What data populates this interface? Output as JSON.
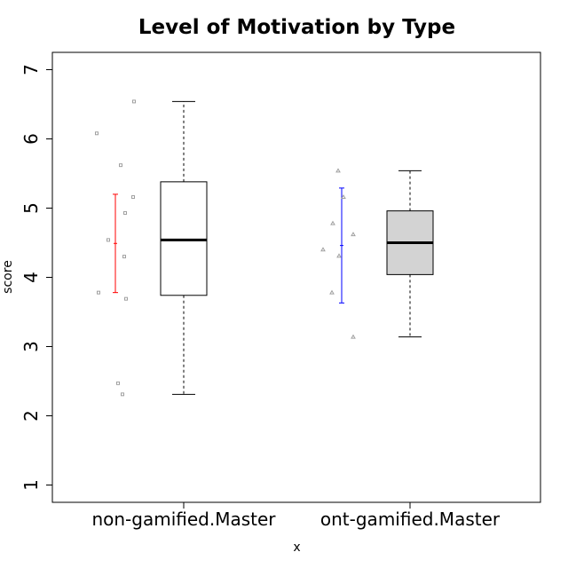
{
  "chart_data": {
    "type": "box",
    "title": "Level of Motivation by Type",
    "xlabel": "x",
    "ylabel": "score",
    "ylim": [
      0.75,
      7.25
    ],
    "yticks": [
      1,
      2,
      3,
      4,
      5,
      6,
      7
    ],
    "categories": [
      "non-gamified.Master",
      "ont-gamified.Master"
    ],
    "boxes": [
      {
        "category": "non-gamified.Master",
        "fill": "#ffffff",
        "min": 2.31,
        "q1": 3.74,
        "median": 4.54,
        "q3": 5.38,
        "max": 6.54
      },
      {
        "category": "ont-gamified.Master",
        "fill": "#d3d3d3",
        "min": 3.14,
        "q1": 4.04,
        "median": 4.5,
        "q3": 4.96,
        "max": 5.54
      }
    ],
    "error_bars": [
      {
        "category": "non-gamified.Master",
        "color": "#ff0000",
        "low": 3.78,
        "mean": 4.49,
        "high": 5.2
      },
      {
        "category": "ont-gamified.Master",
        "color": "#0000ff",
        "low": 3.63,
        "mean": 4.46,
        "high": 5.29
      }
    ],
    "points": [
      {
        "category": "non-gamified.Master",
        "marker": "square",
        "values": [
          6.08,
          5.62,
          5.16,
          4.93,
          4.54,
          4.3,
          3.78,
          3.69,
          2.47,
          2.31,
          6.54
        ]
      },
      {
        "category": "ont-gamified.Master",
        "marker": "triangle",
        "values": [
          5.54,
          5.16,
          4.78,
          4.62,
          4.4,
          4.31,
          3.78,
          3.14
        ]
      }
    ],
    "point_color": "#a0a0a0",
    "grid": false,
    "legend": "none"
  }
}
